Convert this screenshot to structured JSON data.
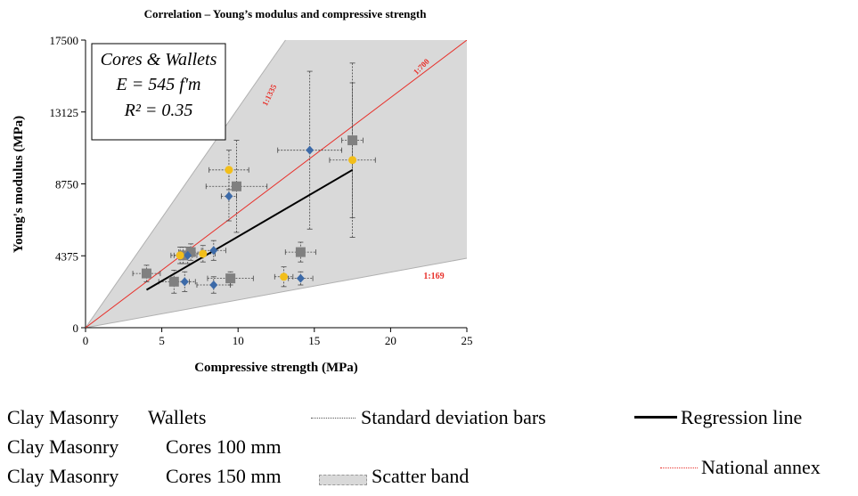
{
  "chart_data": {
    "type": "scatter",
    "title": "Correlation – Young’s modulus and compressive strength",
    "xlabel": "Compressive strength (MPa)",
    "ylabel": "Young's modulus (MPa)",
    "xlim": [
      0,
      25
    ],
    "ylim": [
      0,
      17500
    ],
    "xticks": [
      "0",
      "5",
      "10",
      "15",
      "20",
      "25"
    ],
    "yticks": [
      "0",
      "4375",
      "8750",
      "13125",
      "17500"
    ],
    "grid": false,
    "legend_position": "bottom",
    "annotation_box": {
      "line1": "Cores & Wallets",
      "line2": "E = 545 f'm",
      "line3": "R² = 0.35"
    },
    "ratio_labels": {
      "upper": "1:1335",
      "middle": "1:700",
      "lower": "1:169"
    },
    "lines": {
      "national_annex": {
        "slope": 700,
        "color": "#e8302a"
      },
      "band_upper": {
        "slope": 1335
      },
      "band_lower": {
        "slope": 169
      },
      "regression": {
        "x": [
          4,
          17.5
        ],
        "y": [
          2300,
          9600
        ]
      }
    },
    "series": [
      {
        "name": "Clay Masonry Wallets",
        "color": "#808080",
        "marker": "square",
        "points": [
          {
            "x": 4.0,
            "y": 3300,
            "xerr": 0.9,
            "yerr": 500
          },
          {
            "x": 5.8,
            "y": 2800,
            "xerr": 1.0,
            "yerr": 700
          },
          {
            "x": 6.4,
            "y": 4400,
            "xerr": 0.6,
            "yerr": 500
          },
          {
            "x": 6.9,
            "y": 4600,
            "xerr": 0.8,
            "yerr": 500
          },
          {
            "x": 9.5,
            "y": 3000,
            "xerr": 1.5,
            "yerr": 400
          },
          {
            "x": 9.9,
            "y": 8600,
            "xerr": 2.0,
            "yerr": 2800
          },
          {
            "x": 14.1,
            "y": 4600,
            "xerr": 1.0,
            "yerr": 600
          },
          {
            "x": 17.5,
            "y": 11400,
            "xerr": 0.7,
            "yerr": 4700
          }
        ]
      },
      {
        "name": "Clay Masonry Cores 100 mm",
        "color": "#3c6aa8",
        "marker": "diamond",
        "points": [
          {
            "x": 6.5,
            "y": 2800,
            "xerr": 0.7,
            "yerr": 600
          },
          {
            "x": 6.7,
            "y": 4400,
            "xerr": 0.6,
            "yerr": 500
          },
          {
            "x": 8.4,
            "y": 2600,
            "xerr": 1.1,
            "yerr": 500
          },
          {
            "x": 8.4,
            "y": 4700,
            "xerr": 0.8,
            "yerr": 600
          },
          {
            "x": 9.4,
            "y": 8000,
            "xerr": 0.5,
            "yerr": 1500
          },
          {
            "x": 14.1,
            "y": 3000,
            "xerr": 0.8,
            "yerr": 400
          },
          {
            "x": 14.7,
            "y": 10800,
            "xerr": 2.1,
            "yerr": 4800
          }
        ]
      },
      {
        "name": "Clay Masonry Cores 150 mm",
        "color": "#f2be1a",
        "marker": "circle",
        "points": [
          {
            "x": 6.2,
            "y": 4400,
            "xerr": 0.6,
            "yerr": 500
          },
          {
            "x": 7.7,
            "y": 4500,
            "xerr": 0.8,
            "yerr": 500
          },
          {
            "x": 9.4,
            "y": 9600,
            "xerr": 1.3,
            "yerr": 1200
          },
          {
            "x": 13.0,
            "y": 3100,
            "xerr": 0.6,
            "yerr": 600
          },
          {
            "x": 17.5,
            "y": 10200,
            "xerr": 1.5,
            "yerr": 4700
          }
        ]
      }
    ]
  },
  "legend": {
    "wallets": {
      "part1": "Clay Masonry",
      "part2": "Wallets"
    },
    "cores100": {
      "part1": "Clay Masonry",
      "part2": "Cores 100 mm"
    },
    "cores150": {
      "part1": "Clay Masonry",
      "part2": "Cores 150 mm"
    },
    "std_bars": "Standard deviation bars",
    "regression": "Regression line",
    "national_annex": "National annex",
    "scatter_band": "Scatter band"
  }
}
